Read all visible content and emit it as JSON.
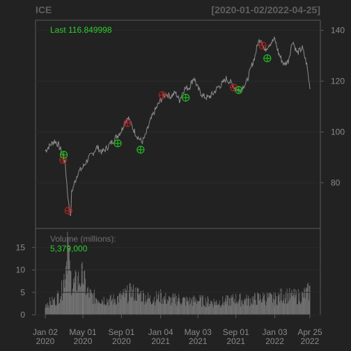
{
  "header": {
    "symbol": "ICE",
    "date_range": "[2020-01-02/2022-04-25]"
  },
  "price_panel": {
    "last_label": "Last 116.849998",
    "y_ticks": [
      "80",
      "100",
      "120",
      "140"
    ]
  },
  "volume_panel": {
    "label": "Volume (millions):",
    "value": "5,379,000",
    "y_ticks": [
      "0",
      "5",
      "10",
      "15"
    ]
  },
  "x_ticks": [
    {
      "line1": "Jan 02",
      "line2": "2020"
    },
    {
      "line1": "May 01",
      "line2": "2020"
    },
    {
      "line1": "Sep 01",
      "line2": "2020"
    },
    {
      "line1": "Jan 04",
      "line2": "2021"
    },
    {
      "line1": "May 03",
      "line2": "2021"
    },
    {
      "line1": "Sep 01",
      "line2": "2021"
    },
    {
      "line1": "Jan 03",
      "line2": "2022"
    },
    {
      "line1": "Apr 25",
      "line2": "2022"
    }
  ],
  "colors": {
    "background": "#222222",
    "panel_border": "#5a5a5a",
    "price_line": "#8c8c8c",
    "volume_bars": "#7a7a7a",
    "buy_marker": "#22bb22",
    "sell_marker": "#aa2222",
    "last_text": "#2ecc2e"
  },
  "chart_data": {
    "type": "line",
    "x_range": [
      "2020-01-02",
      "2022-04-25"
    ],
    "ylim": [
      62,
      144
    ],
    "volume_ylim": [
      0,
      18
    ],
    "price_series": [
      [
        "2020-01-02",
        92.5
      ],
      [
        "2020-01-15",
        94.5
      ],
      [
        "2020-02-01",
        96.5
      ],
      [
        "2020-02-12",
        95.0
      ],
      [
        "2020-02-24",
        92.0
      ],
      [
        "2020-03-05",
        88.0
      ],
      [
        "2020-03-12",
        78.0
      ],
      [
        "2020-03-16",
        72.0
      ],
      [
        "2020-03-20",
        70.5
      ],
      [
        "2020-03-23",
        66.0
      ],
      [
        "2020-03-26",
        76.0
      ],
      [
        "2020-04-02",
        79.0
      ],
      [
        "2020-04-15",
        84.0
      ],
      [
        "2020-05-01",
        86.0
      ],
      [
        "2020-05-15",
        89.0
      ],
      [
        "2020-06-01",
        91.5
      ],
      [
        "2020-06-15",
        94.0
      ],
      [
        "2020-07-01",
        92.0
      ],
      [
        "2020-07-15",
        93.5
      ],
      [
        "2020-08-01",
        96.0
      ],
      [
        "2020-08-15",
        98.0
      ],
      [
        "2020-09-01",
        100.5
      ],
      [
        "2020-09-10",
        103.5
      ],
      [
        "2020-09-22",
        106.0
      ],
      [
        "2020-10-05",
        102.0
      ],
      [
        "2020-10-20",
        98.5
      ],
      [
        "2020-11-05",
        96.0
      ],
      [
        "2020-11-15",
        98.0
      ],
      [
        "2020-12-01",
        104.0
      ],
      [
        "2020-12-15",
        108.0
      ],
      [
        "2021-01-04",
        112.5
      ],
      [
        "2021-01-20",
        115.0
      ],
      [
        "2021-02-05",
        114.0
      ],
      [
        "2021-02-20",
        115.5
      ],
      [
        "2021-03-05",
        112.5
      ],
      [
        "2021-03-20",
        117.0
      ],
      [
        "2021-04-05",
        117.5
      ],
      [
        "2021-04-20",
        121.5
      ],
      [
        "2021-05-03",
        117.0
      ],
      [
        "2021-05-20",
        114.0
      ],
      [
        "2021-06-05",
        113.5
      ],
      [
        "2021-06-20",
        115.0
      ],
      [
        "2021-07-05",
        117.5
      ],
      [
        "2021-07-20",
        119.0
      ],
      [
        "2021-08-01",
        121.0
      ],
      [
        "2021-08-15",
        119.5
      ],
      [
        "2021-09-01",
        117.0
      ],
      [
        "2021-09-10",
        116.5
      ],
      [
        "2021-09-20",
        117.5
      ],
      [
        "2021-10-05",
        119.5
      ],
      [
        "2021-10-20",
        125.5
      ],
      [
        "2021-11-01",
        130.0
      ],
      [
        "2021-11-10",
        135.0
      ],
      [
        "2021-11-20",
        137.0
      ],
      [
        "2021-12-01",
        132.0
      ],
      [
        "2021-12-15",
        134.5
      ],
      [
        "2022-01-03",
        136.5
      ],
      [
        "2022-01-15",
        131.0
      ],
      [
        "2022-02-01",
        126.5
      ],
      [
        "2022-02-15",
        128.0
      ],
      [
        "2022-03-01",
        136.0
      ],
      [
        "2022-03-15",
        131.0
      ],
      [
        "2022-04-01",
        133.0
      ],
      [
        "2022-04-15",
        126.5
      ],
      [
        "2022-04-21",
        121.0
      ],
      [
        "2022-04-25",
        116.85
      ]
    ],
    "buy_signals": [
      [
        "2020-03-01",
        91.0
      ],
      [
        "2020-08-20",
        95.5
      ],
      [
        "2020-11-01",
        93.0
      ],
      [
        "2021-03-25",
        113.5
      ],
      [
        "2021-09-10",
        116.5
      ],
      [
        "2021-12-10",
        129.0
      ]
    ],
    "sell_signals": [
      [
        "2020-02-28",
        89.0
      ],
      [
        "2020-03-16",
        69.0
      ],
      [
        "2020-09-20",
        103.5
      ],
      [
        "2021-01-10",
        114.5
      ],
      [
        "2021-08-25",
        117.5
      ],
      [
        "2021-11-25",
        134.0
      ]
    ],
    "volume_series": [
      [
        "2020-01-02",
        2.5
      ],
      [
        "2020-02-01",
        3.0
      ],
      [
        "2020-02-25",
        5.5
      ],
      [
        "2020-03-10",
        12.0
      ],
      [
        "2020-03-13",
        17.5
      ],
      [
        "2020-03-16",
        13.0
      ],
      [
        "2020-03-20",
        9.0
      ],
      [
        "2020-04-01",
        6.5
      ],
      [
        "2020-04-15",
        7.5
      ],
      [
        "2020-05-01",
        8.5
      ],
      [
        "2020-05-15",
        5.0
      ],
      [
        "2020-06-01",
        4.0
      ],
      [
        "2020-07-01",
        3.5
      ],
      [
        "2020-08-01",
        3.2
      ],
      [
        "2020-09-01",
        4.0
      ],
      [
        "2020-10-01",
        5.0
      ],
      [
        "2020-11-01",
        4.5
      ],
      [
        "2020-12-01",
        3.5
      ],
      [
        "2021-01-04",
        4.0
      ],
      [
        "2021-02-01",
        3.2
      ],
      [
        "2021-03-01",
        3.5
      ],
      [
        "2021-04-01",
        3.0
      ],
      [
        "2021-05-03",
        3.2
      ],
      [
        "2021-06-01",
        3.0
      ],
      [
        "2021-07-01",
        2.8
      ],
      [
        "2021-08-01",
        3.0
      ],
      [
        "2021-09-01",
        3.5
      ],
      [
        "2021-10-01",
        3.2
      ],
      [
        "2021-11-01",
        3.5
      ],
      [
        "2021-12-01",
        3.8
      ],
      [
        "2022-01-03",
        3.5
      ],
      [
        "2022-02-01",
        4.5
      ],
      [
        "2022-03-01",
        4.0
      ],
      [
        "2022-04-01",
        4.2
      ],
      [
        "2022-04-25",
        5.379
      ]
    ]
  }
}
